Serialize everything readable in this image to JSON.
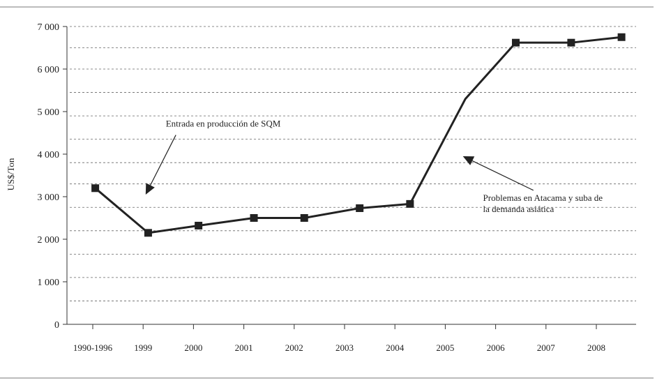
{
  "chart_data": {
    "type": "line",
    "title": "",
    "xlabel": "",
    "ylabel": "US$/Ton",
    "ylim": [
      0,
      7000
    ],
    "yticks": [
      {
        "value": 0,
        "label": "0"
      },
      {
        "value": 1000,
        "label": "1 000"
      },
      {
        "value": 2000,
        "label": "2 000"
      },
      {
        "value": 3000,
        "label": "3 000"
      },
      {
        "value": 4000,
        "label": "4 000"
      },
      {
        "value": 5000,
        "label": "5 000"
      },
      {
        "value": 6000,
        "label": "6 000"
      },
      {
        "value": 7000,
        "label": "7 000"
      }
    ],
    "gridlines": [
      550,
      1100,
      1650,
      2200,
      2750,
      3300,
      3800,
      4350,
      4900,
      5450,
      6000,
      6500,
      7000
    ],
    "grid": true,
    "categories": [
      "1990-1996",
      "1999",
      "2000",
      "2001",
      "2002",
      "2003",
      "2004",
      "2005",
      "2006",
      "2007",
      "2008"
    ],
    "points": [
      {
        "x": 0.05,
        "y": 3200,
        "marker": true
      },
      {
        "x": 1.1,
        "y": 2150,
        "marker": true
      },
      {
        "x": 2.1,
        "y": 2320,
        "marker": true
      },
      {
        "x": 3.2,
        "y": 2500,
        "marker": true
      },
      {
        "x": 4.2,
        "y": 2500,
        "marker": true
      },
      {
        "x": 5.3,
        "y": 2730,
        "marker": true
      },
      {
        "x": 6.3,
        "y": 2830,
        "marker": true
      },
      {
        "x": 7.4,
        "y": 5300,
        "marker": false
      },
      {
        "x": 8.4,
        "y": 6620,
        "marker": true
      },
      {
        "x": 9.5,
        "y": 6620,
        "marker": true
      },
      {
        "x": 10.5,
        "y": 6750,
        "marker": true
      }
    ],
    "annotations": [
      {
        "text": "Entrada en producción de SQM",
        "x": 1.45,
        "y": 4650,
        "arrow_from": [
          1.65,
          4450
        ],
        "arrow_to": [
          1.05,
          3050
        ]
      },
      {
        "text": "Problemas en Atacama y suba de",
        "x": 7.75,
        "y": 2900,
        "arrow_from": [
          8.75,
          3150
        ],
        "arrow_to": [
          7.35,
          3950
        ]
      },
      {
        "text": "la demanda asiática",
        "x": 7.75,
        "y": 2640
      }
    ]
  }
}
